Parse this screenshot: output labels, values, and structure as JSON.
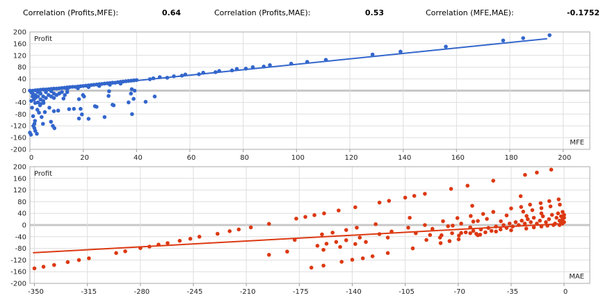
{
  "header": {
    "stats": [
      {
        "label": "Correlation (Profits,MFE):",
        "value": "0.64"
      },
      {
        "label": "Correlation (Profits,MAE):",
        "value": "0.53"
      },
      {
        "label": "Correlation (MFE,MAE):",
        "value": "-0.1752"
      }
    ]
  },
  "chart_data": [
    {
      "type": "scatter",
      "xlabel": "MFE",
      "ylabel": "Profit",
      "xlim": [
        0,
        210
      ],
      "ylim": [
        -200,
        200
      ],
      "xticks": [
        0,
        20,
        40,
        60,
        80,
        100,
        120,
        140,
        160,
        180,
        200
      ],
      "yticks": [
        200,
        160,
        120,
        80,
        40,
        0,
        -40,
        -80,
        -120,
        -160,
        -200
      ],
      "grid": true,
      "color": "#3366cc",
      "trendline": [
        [
          0,
          -3
        ],
        [
          194,
          177
        ]
      ],
      "points": [
        [
          0,
          0
        ],
        [
          0.5,
          -5
        ],
        [
          1,
          -10
        ],
        [
          1,
          -20
        ],
        [
          1.5,
          -30
        ],
        [
          0.5,
          -35
        ],
        [
          2,
          -25
        ],
        [
          2,
          -15
        ],
        [
          3,
          -5
        ],
        [
          3,
          -20
        ],
        [
          4,
          -10
        ],
        [
          4,
          -30
        ],
        [
          5,
          -20
        ],
        [
          5,
          -35
        ],
        [
          6,
          -25
        ],
        [
          6,
          -5
        ],
        [
          7,
          -15
        ],
        [
          8,
          -20
        ],
        [
          9,
          -10
        ],
        [
          9,
          -25
        ],
        [
          10,
          -15
        ],
        [
          11,
          -10
        ],
        [
          12,
          -5
        ],
        [
          1,
          0
        ],
        [
          2,
          1
        ],
        [
          3,
          2
        ],
        [
          4,
          3
        ],
        [
          5,
          4
        ],
        [
          6,
          4
        ],
        [
          7,
          5
        ],
        [
          8,
          6
        ],
        [
          9,
          7
        ],
        [
          10,
          7
        ],
        [
          11,
          8
        ],
        [
          12,
          9
        ],
        [
          13,
          10
        ],
        [
          14,
          11
        ],
        [
          15,
          12
        ],
        [
          16,
          13
        ],
        [
          17,
          13
        ],
        [
          18,
          14
        ],
        [
          19,
          15
        ],
        [
          20,
          16
        ],
        [
          21,
          17
        ],
        [
          22,
          18
        ],
        [
          23,
          19
        ],
        [
          24,
          20
        ],
        [
          25,
          21
        ],
        [
          26,
          22
        ],
        [
          27,
          23
        ],
        [
          28,
          24
        ],
        [
          29,
          25
        ],
        [
          30,
          26
        ],
        [
          31,
          27
        ],
        [
          32,
          27
        ],
        [
          33,
          29
        ],
        [
          34,
          30
        ],
        [
          35,
          31
        ],
        [
          36,
          32
        ],
        [
          37,
          33
        ],
        [
          38,
          34
        ],
        [
          39,
          35
        ],
        [
          40,
          36
        ],
        [
          14,
          5
        ],
        [
          18,
          8
        ],
        [
          22,
          12
        ],
        [
          26,
          16
        ],
        [
          30,
          20
        ],
        [
          34,
          24
        ],
        [
          8,
          -2
        ],
        [
          3,
          -40
        ],
        [
          4,
          -45
        ],
        [
          2,
          -42
        ],
        [
          0.8,
          -58
        ],
        [
          1.2,
          -87
        ],
        [
          1.3,
          -120
        ],
        [
          1.7,
          -128
        ],
        [
          1.7,
          -113
        ],
        [
          1.9,
          -103
        ],
        [
          2,
          -137
        ],
        [
          2.6,
          -147
        ],
        [
          0,
          -143
        ],
        [
          0.4,
          -150
        ],
        [
          2.8,
          -65
        ],
        [
          3.4,
          -75
        ],
        [
          3.8,
          -50
        ],
        [
          4.4,
          -90
        ],
        [
          4.9,
          -113
        ],
        [
          5.1,
          -42
        ],
        [
          5.6,
          -73
        ],
        [
          7.3,
          -58
        ],
        [
          7.9,
          -106
        ],
        [
          8.6,
          -120
        ],
        [
          9.2,
          -128
        ],
        [
          9,
          -70
        ],
        [
          10.6,
          -68
        ],
        [
          12.6,
          -27
        ],
        [
          13.1,
          -15
        ],
        [
          14,
          -5
        ],
        [
          14.7,
          -63
        ],
        [
          16.5,
          -62
        ],
        [
          18.4,
          -95
        ],
        [
          18.4,
          -29
        ],
        [
          19,
          -62
        ],
        [
          19.5,
          -81
        ],
        [
          19.9,
          -15
        ],
        [
          20.3,
          -20
        ],
        [
          22,
          -96
        ],
        [
          24.4,
          -53
        ],
        [
          25,
          -55
        ],
        [
          28,
          -90
        ],
        [
          29.5,
          -18
        ],
        [
          29.7,
          -2
        ],
        [
          31,
          -48
        ],
        [
          31.4,
          -50
        ],
        [
          37,
          -40
        ],
        [
          37.9,
          -10
        ],
        [
          38.2,
          5
        ],
        [
          38.3,
          -80
        ],
        [
          38.9,
          -28
        ],
        [
          39.3,
          0
        ],
        [
          43.4,
          -38
        ],
        [
          46.8,
          -20
        ],
        [
          45,
          39
        ],
        [
          46.3,
          42
        ],
        [
          48.7,
          46
        ],
        [
          51.5,
          44
        ],
        [
          54,
          49
        ],
        [
          57,
          51
        ],
        [
          58.3,
          55
        ],
        [
          63.4,
          56
        ],
        [
          65,
          61
        ],
        [
          69.6,
          63
        ],
        [
          71,
          67
        ],
        [
          75.8,
          69
        ],
        [
          77.6,
          74
        ],
        [
          81,
          75
        ],
        [
          83.6,
          80
        ],
        [
          87.7,
          82
        ],
        [
          90,
          87
        ],
        [
          98,
          92
        ],
        [
          104,
          98
        ],
        [
          111,
          105
        ],
        [
          128.5,
          123
        ],
        [
          139,
          133
        ],
        [
          156,
          150
        ],
        [
          177.5,
          171
        ],
        [
          185,
          179
        ],
        [
          194.9,
          189
        ]
      ]
    },
    {
      "type": "scatter",
      "xlabel": "MAE",
      "ylabel": "Profit",
      "xlim": [
        -353,
        17
      ],
      "ylim": [
        -200,
        200
      ],
      "xticks": [
        -350,
        -315,
        -280,
        -245,
        -210,
        -175,
        -140,
        -105,
        -70,
        -35,
        0
      ],
      "yticks": [
        200,
        160,
        120,
        80,
        40,
        0,
        -40,
        -80,
        -120,
        -160,
        -200
      ],
      "grid": true,
      "color": "#dc3912",
      "trendline": [
        [
          -351,
          -95
        ],
        [
          0,
          5
        ]
      ],
      "points": [
        [
          -350,
          -148.5
        ],
        [
          -344,
          -143
        ],
        [
          -337,
          -137
        ],
        [
          -328,
          -127
        ],
        [
          -320.6,
          -120
        ],
        [
          -314,
          -114
        ],
        [
          -296,
          -96
        ],
        [
          -290,
          -90
        ],
        [
          -280,
          -79
        ],
        [
          -274,
          -74
        ],
        [
          -268,
          -67
        ],
        [
          -262,
          -62
        ],
        [
          -254,
          -54
        ],
        [
          -247,
          -47
        ],
        [
          -241,
          -40
        ],
        [
          -229,
          -30
        ],
        [
          -221,
          -21
        ],
        [
          -215,
          -15
        ],
        [
          -207,
          -8
        ],
        [
          -195,
          4
        ],
        [
          -195,
          -102
        ],
        [
          -183,
          -91
        ],
        [
          -178,
          -51
        ],
        [
          -177,
          22
        ],
        [
          -171,
          28
        ],
        [
          -167,
          -146
        ],
        [
          -165,
          34
        ],
        [
          -163,
          -71
        ],
        [
          -160,
          -32
        ],
        [
          -159,
          -85
        ],
        [
          -159,
          -139
        ],
        [
          -158.6,
          40
        ],
        [
          -157,
          -64
        ],
        [
          -153,
          -26
        ],
        [
          -150.6,
          -58
        ],
        [
          -149,
          50
        ],
        [
          -148,
          -75
        ],
        [
          -147,
          -126
        ],
        [
          -144,
          -17
        ],
        [
          -144,
          -52
        ],
        [
          -140,
          -119
        ],
        [
          -138,
          61
        ],
        [
          -138,
          -65
        ],
        [
          -137,
          -9
        ],
        [
          -135,
          -43
        ],
        [
          -133,
          -114
        ],
        [
          -131,
          -58
        ],
        [
          -126.6,
          -107
        ],
        [
          -124.5,
          3
        ],
        [
          -122,
          -31
        ],
        [
          -122,
          77
        ],
        [
          -116.5,
          -43
        ],
        [
          -116.5,
          -96
        ],
        [
          -115.7,
          83
        ],
        [
          -114,
          -22
        ],
        [
          -105,
          94
        ],
        [
          -103,
          -9
        ],
        [
          -102,
          25
        ],
        [
          -100,
          -80
        ],
        [
          -99,
          100
        ],
        [
          -98,
          -28
        ],
        [
          -92,
          0
        ],
        [
          -92,
          107
        ],
        [
          -91,
          -51
        ],
        [
          -88.6,
          -34
        ],
        [
          -87,
          -13
        ],
        [
          -82,
          -43
        ],
        [
          -81.6,
          -62
        ],
        [
          -81,
          -35
        ],
        [
          -80,
          13
        ],
        [
          -76.7,
          -4
        ],
        [
          -75.7,
          -55
        ],
        [
          -74.7,
          124
        ],
        [
          -74,
          -28
        ],
        [
          -73.6,
          -2
        ],
        [
          -70.5,
          24
        ],
        [
          -69.7,
          -49
        ],
        [
          -69.5,
          -36
        ],
        [
          -68,
          5
        ],
        [
          -63.8,
          135
        ],
        [
          -62,
          -8
        ],
        [
          -61.7,
          31
        ],
        [
          -60.7,
          66
        ],
        [
          -60,
          12
        ],
        [
          -57,
          14
        ],
        [
          -55.5,
          -33
        ],
        [
          -53.5,
          38
        ],
        [
          -51,
          21
        ],
        [
          -46.8,
          152
        ],
        [
          -46.8,
          45
        ],
        [
          -41.8,
          13
        ],
        [
          -38,
          33
        ],
        [
          -35,
          57
        ],
        [
          -28.7,
          99
        ],
        [
          -28.4,
          62
        ],
        [
          -27,
          46
        ],
        [
          -25.8,
          172
        ],
        [
          -24.8,
          31
        ],
        [
          -22.5,
          70
        ],
        [
          -21,
          51
        ],
        [
          -18,
          180
        ],
        [
          -15.5,
          75
        ],
        [
          -15,
          58
        ],
        [
          -15,
          40
        ],
        [
          -9.8,
          82
        ],
        [
          -8.5,
          190
        ],
        [
          -9,
          64
        ],
        [
          -3.6,
          88
        ],
        [
          -2.8,
          70
        ],
        [
          -65,
          -25
        ],
        [
          -60,
          -20
        ],
        [
          -58,
          -30
        ],
        [
          -55,
          -15
        ],
        [
          -52,
          -25
        ],
        [
          -50,
          -10
        ],
        [
          -48,
          -20
        ],
        [
          -45,
          -5
        ],
        [
          -42,
          -15
        ],
        [
          -40,
          0
        ],
        [
          -38,
          -10
        ],
        [
          -36,
          5
        ],
        [
          -34,
          -5
        ],
        [
          -32,
          10
        ],
        [
          -30,
          0
        ],
        [
          -28,
          15
        ],
        [
          -26,
          5
        ],
        [
          -24,
          20
        ],
        [
          -22,
          10
        ],
        [
          -20,
          25
        ],
        [
          -18,
          5
        ],
        [
          -16,
          15
        ],
        [
          -14,
          30
        ],
        [
          -12,
          10
        ],
        [
          -10,
          20
        ],
        [
          -8,
          35
        ],
        [
          -6,
          5
        ],
        [
          -5,
          25
        ],
        [
          -4,
          40
        ],
        [
          -3,
          15
        ],
        [
          -2,
          30
        ],
        [
          -1,
          45
        ],
        [
          -1,
          5
        ],
        [
          -2,
          10
        ],
        [
          -3,
          0
        ],
        [
          -1,
          20
        ],
        [
          0,
          10
        ],
        [
          0,
          25
        ],
        [
          0,
          35
        ],
        [
          -7,
          0
        ],
        [
          -11,
          -2
        ],
        [
          -15,
          -5
        ],
        [
          -20,
          -8
        ],
        [
          -25,
          -12
        ],
        [
          -35,
          -18
        ],
        [
          -45,
          -22
        ],
        [
          -62,
          -28
        ],
        [
          -68,
          -27
        ],
        [
          -57,
          -35
        ]
      ]
    }
  ]
}
